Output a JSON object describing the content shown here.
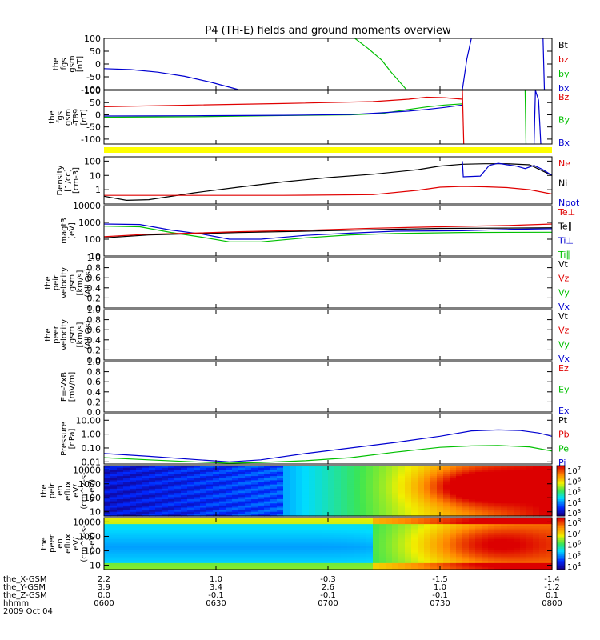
{
  "title": "P4 (TH-E) fields and ground moments overview",
  "colors": {
    "black": "#000000",
    "red": "#e00000",
    "green": "#00c000",
    "blue": "#0000d0",
    "yellow": "#ffff00"
  },
  "chart_data": [
    {
      "id": "fgs",
      "type": "line",
      "ylabel": [
        "the",
        "fgs",
        "gsm",
        "[nT]"
      ],
      "ylim": [
        -100,
        100
      ],
      "yticks": [
        "100",
        "50",
        "0",
        "-50",
        "-100"
      ],
      "legend": [
        {
          "text": "Bt",
          "color": "black"
        },
        {
          "text": "bz",
          "color": "red"
        },
        {
          "text": "by",
          "color": "green"
        },
        {
          "text": "bx",
          "color": "blue"
        }
      ],
      "series": [
        {
          "name": "bx",
          "color": "blue",
          "points": [
            [
              0,
              -18
            ],
            [
              6,
              -22
            ],
            [
              12,
              -32
            ],
            [
              18,
              -48
            ],
            [
              24,
              -72
            ],
            [
              30,
              -100
            ]
          ]
        },
        {
          "name": "bx",
          "color": "blue",
          "points": [
            [
              80,
              -100
            ],
            [
              81,
              20
            ],
            [
              82,
              100
            ]
          ]
        },
        {
          "name": "bx",
          "color": "blue",
          "points": [
            [
              98,
              100
            ],
            [
              98.3,
              -100
            ]
          ]
        },
        {
          "name": "by",
          "color": "green",
          "points": [
            [
              56,
              100
            ],
            [
              59,
              60
            ],
            [
              62,
              15
            ],
            [
              64,
              -30
            ],
            [
              66,
              -70
            ],
            [
              67.5,
              -100
            ]
          ]
        }
      ]
    },
    {
      "id": "fgs_t89",
      "type": "line",
      "ylabel": [
        "the",
        "fgs",
        "gsm",
        "-T89",
        "[nT]"
      ],
      "ylim": [
        -120,
        100
      ],
      "yticks": [
        "100",
        "50",
        "0",
        "-50",
        "-100"
      ],
      "legend": [
        {
          "text": "Bz",
          "color": "red"
        },
        {
          "text": "By",
          "color": "green"
        },
        {
          "text": "Bx",
          "color": "blue"
        }
      ],
      "series": [
        {
          "name": "Bz",
          "color": "red",
          "points": [
            [
              0,
              33
            ],
            [
              20,
              40
            ],
            [
              40,
              46
            ],
            [
              60,
              54
            ],
            [
              68,
              64
            ],
            [
              72,
              72
            ],
            [
              76,
              70
            ],
            [
              80,
              64
            ]
          ]
        },
        {
          "name": "By",
          "color": "green",
          "points": [
            [
              0,
              -10
            ],
            [
              20,
              -8
            ],
            [
              40,
              -3
            ],
            [
              55,
              0
            ],
            [
              62,
              5
            ],
            [
              68,
              22
            ],
            [
              72,
              32
            ],
            [
              76,
              40
            ],
            [
              80,
              45
            ]
          ]
        },
        {
          "name": "Bx",
          "color": "blue",
          "points": [
            [
              0,
              -5
            ],
            [
              20,
              -4
            ],
            [
              40,
              -2
            ],
            [
              55,
              1
            ],
            [
              62,
              8
            ],
            [
              68,
              15
            ],
            [
              72,
              22
            ],
            [
              76,
              30
            ],
            [
              80,
              40
            ]
          ]
        },
        {
          "name": "Bz",
          "color": "red",
          "points": [
            [
              80,
              100
            ],
            [
              80.3,
              -120
            ]
          ]
        },
        {
          "name": "By",
          "color": "green",
          "points": [
            [
              94,
              100
            ],
            [
              94.2,
              -120
            ]
          ]
        },
        {
          "name": "Bx",
          "color": "blue",
          "points": [
            [
              96,
              -120
            ],
            [
              96.3,
              100
            ],
            [
              97,
              60
            ],
            [
              97.5,
              -120
            ]
          ]
        }
      ]
    },
    {
      "id": "density",
      "type": "line",
      "scale": "log",
      "ylabel": [
        "Density",
        "[1/cc]",
        "[cm-3]"
      ],
      "ylim": [
        0.1,
        200
      ],
      "yticks": [
        "100",
        "10",
        "1"
      ],
      "legend": [
        {
          "text": "Ne",
          "color": "red"
        },
        {
          "text": "Ni",
          "color": "black"
        },
        {
          "text": "Npot",
          "color": "blue"
        }
      ],
      "series": [
        {
          "name": "Ni",
          "color": "black",
          "points": [
            [
              0,
              0.35
            ],
            [
              5,
              0.18
            ],
            [
              10,
              0.2
            ],
            [
              20,
              0.6
            ],
            [
              30,
              1.5
            ],
            [
              40,
              3.5
            ],
            [
              50,
              7
            ],
            [
              60,
              12
            ],
            [
              70,
              25
            ],
            [
              75,
              45
            ],
            [
              80,
              60
            ],
            [
              85,
              65
            ],
            [
              90,
              65
            ],
            [
              95,
              55
            ],
            [
              100,
              10
            ]
          ]
        },
        {
          "name": "Ne",
          "color": "red",
          "points": [
            [
              0,
              0.4
            ],
            [
              20,
              0.4
            ],
            [
              40,
              0.4
            ],
            [
              60,
              0.45
            ],
            [
              70,
              0.9
            ],
            [
              75,
              1.5
            ],
            [
              80,
              1.7
            ],
            [
              85,
              1.6
            ],
            [
              90,
              1.4
            ],
            [
              95,
              1.0
            ],
            [
              100,
              0.5
            ]
          ]
        },
        {
          "name": "Npot",
          "color": "blue",
          "points": [
            [
              80,
              100
            ],
            [
              80.2,
              8
            ],
            [
              84,
              9
            ],
            [
              86,
              50
            ],
            [
              88,
              70
            ],
            [
              90,
              55
            ],
            [
              92,
              45
            ],
            [
              94,
              30
            ],
            [
              96,
              50
            ],
            [
              98,
              25
            ],
            [
              100,
              10
            ]
          ]
        }
      ]
    },
    {
      "id": "temp",
      "type": "line",
      "scale": "log",
      "ylabel": [
        "magt3",
        "[eV]"
      ],
      "ylim": [
        10,
        10000
      ],
      "yticks": [
        "10000",
        "1000",
        "100",
        "10"
      ],
      "legend": [
        {
          "text": "Te⊥",
          "color": "red"
        },
        {
          "text": "Te∥",
          "color": "black"
        },
        {
          "text": "Ti⊥",
          "color": "blue"
        },
        {
          "text": "Ti∥",
          "color": "green"
        }
      ],
      "series": [
        {
          "name": "Ti∥",
          "color": "green",
          "points": [
            [
              0,
              600
            ],
            [
              8,
              550
            ],
            [
              15,
              250
            ],
            [
              22,
              130
            ],
            [
              28,
              70
            ],
            [
              35,
              70
            ],
            [
              45,
              120
            ],
            [
              55,
              180
            ],
            [
              65,
              220
            ],
            [
              80,
              250
            ],
            [
              100,
              260
            ]
          ]
        },
        {
          "name": "Ti⊥",
          "color": "blue",
          "points": [
            [
              0,
              800
            ],
            [
              8,
              750
            ],
            [
              15,
              350
            ],
            [
              22,
              200
            ],
            [
              28,
              100
            ],
            [
              35,
              100
            ],
            [
              45,
              170
            ],
            [
              55,
              230
            ],
            [
              65,
              300
            ],
            [
              80,
              320
            ],
            [
              90,
              380
            ],
            [
              100,
              420
            ]
          ]
        },
        {
          "name": "Te∥",
          "color": "black",
          "points": [
            [
              0,
              120
            ],
            [
              10,
              180
            ],
            [
              20,
              210
            ],
            [
              30,
              250
            ],
            [
              45,
              300
            ],
            [
              60,
              370
            ],
            [
              75,
              440
            ],
            [
              90,
              460
            ],
            [
              100,
              480
            ]
          ]
        },
        {
          "name": "Te⊥",
          "color": "red",
          "points": [
            [
              0,
              140
            ],
            [
              10,
              200
            ],
            [
              20,
              230
            ],
            [
              30,
              280
            ],
            [
              45,
              340
            ],
            [
              60,
              450
            ],
            [
              75,
              550
            ],
            [
              90,
              650
            ],
            [
              100,
              800
            ]
          ]
        }
      ]
    },
    {
      "id": "peir_vel",
      "type": "line",
      "ylabel": [
        "the",
        "peir",
        "velocity",
        "gsm",
        "[km/s]",
        "(All Qs)"
      ],
      "ylim": [
        0,
        1
      ],
      "yticks": [
        "1.0",
        "0.8",
        "0.6",
        "0.4",
        "0.2",
        "0.0"
      ],
      "legend": [
        {
          "text": "Vt",
          "color": "black"
        },
        {
          "text": "Vz",
          "color": "red"
        },
        {
          "text": "Vy",
          "color": "green"
        },
        {
          "text": "Vx",
          "color": "blue"
        }
      ],
      "series": []
    },
    {
      "id": "peer_vel",
      "type": "line",
      "ylabel": [
        "the",
        "peer",
        "velocity",
        "gsm",
        "[km/s]",
        "(All Qs)"
      ],
      "ylim": [
        0,
        1
      ],
      "yticks": [
        "1.0",
        "0.8",
        "0.6",
        "0.4",
        "0.2",
        "0.0"
      ],
      "legend": [
        {
          "text": "Vt",
          "color": "black"
        },
        {
          "text": "Vz",
          "color": "red"
        },
        {
          "text": "Vy",
          "color": "green"
        },
        {
          "text": "Vx",
          "color": "blue"
        }
      ],
      "series": []
    },
    {
      "id": "efield",
      "type": "line",
      "ylabel": [
        "E=-VxB",
        "[mV/m]"
      ],
      "ylim": [
        0,
        1
      ],
      "yticks": [
        "1.0",
        "0.8",
        "0.6",
        "0.4",
        "0.2",
        "0.0"
      ],
      "legend": [
        {
          "text": "Ez",
          "color": "red"
        },
        {
          "text": "Ey",
          "color": "green"
        },
        {
          "text": "Ex",
          "color": "blue"
        }
      ],
      "series": []
    },
    {
      "id": "pressure",
      "type": "line",
      "scale": "log",
      "ylabel": [
        "Pressure",
        "[nPa]"
      ],
      "ylim": [
        0.007,
        30
      ],
      "yticks": [
        "10.00",
        "1.00",
        "0.10",
        "0.01"
      ],
      "legend": [
        {
          "text": "Pt",
          "color": "black"
        },
        {
          "text": "Pb",
          "color": "red"
        },
        {
          "text": "Pe",
          "color": "green"
        },
        {
          "text": "Pi",
          "color": "blue"
        }
      ],
      "series": [
        {
          "name": "Pi",
          "color": "blue",
          "points": [
            [
              0,
              0.04
            ],
            [
              10,
              0.025
            ],
            [
              20,
              0.015
            ],
            [
              28,
              0.01
            ],
            [
              35,
              0.014
            ],
            [
              45,
              0.04
            ],
            [
              55,
              0.1
            ],
            [
              65,
              0.25
            ],
            [
              75,
              0.7
            ],
            [
              82,
              1.7
            ],
            [
              88,
              2.0
            ],
            [
              93,
              1.8
            ],
            [
              97,
              1.2
            ],
            [
              100,
              0.7
            ]
          ]
        },
        {
          "name": "Pe",
          "color": "green",
          "points": [
            [
              0,
              0.02
            ],
            [
              10,
              0.014
            ],
            [
              20,
              0.01
            ],
            [
              28,
              0.008
            ],
            [
              35,
              0.009
            ],
            [
              45,
              0.012
            ],
            [
              55,
              0.02
            ],
            [
              65,
              0.05
            ],
            [
              75,
              0.11
            ],
            [
              82,
              0.14
            ],
            [
              88,
              0.15
            ],
            [
              95,
              0.12
            ],
            [
              100,
              0.06
            ]
          ]
        }
      ]
    },
    {
      "id": "peir_spec",
      "type": "heatmap",
      "ylabel": [
        "the",
        "peir",
        "en",
        "eflux",
        "eV/",
        "(cm^2-s-",
        "sr-eV)"
      ],
      "ylim": [
        5,
        20000
      ],
      "yticks": [
        "10000",
        "1000",
        "100",
        "10"
      ],
      "colorbar": [
        "10^7",
        "10^6",
        "10^5",
        "10^4",
        "10^3"
      ]
    },
    {
      "id": "peer_spec",
      "type": "heatmap",
      "ylabel": [
        "the",
        "peer",
        "en",
        "eflux",
        "eV/",
        "(cm^2-s-",
        "sr-eV)"
      ],
      "ylim": [
        5,
        20000
      ],
      "yticks": [
        "10000",
        "1000",
        "100",
        "10"
      ],
      "colorbar": [
        "10^8",
        "10^7",
        "10^6",
        "10^5",
        "10^4"
      ]
    }
  ],
  "xaxis": {
    "rows": [
      {
        "label": "the_X-GSM",
        "values": [
          "2.2",
          "1.0",
          "-0.3",
          "-1.5",
          "-1.4"
        ]
      },
      {
        "label": "the_Y-GSM",
        "values": [
          "3.9",
          "3.4",
          "2.6",
          "1.0",
          "-1.2"
        ]
      },
      {
        "label": "the_Z-GSM",
        "values": [
          "0.0",
          "-0.1",
          "-0.1",
          "-0.1",
          "0.1"
        ]
      },
      {
        "label": "hhmm",
        "values": [
          "0600",
          "0630",
          "0700",
          "0730",
          "0800"
        ]
      }
    ],
    "date": "2009 Oct 04"
  }
}
